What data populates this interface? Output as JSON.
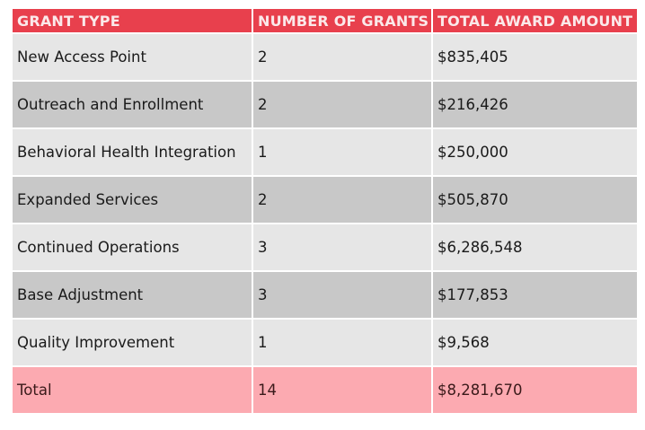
{
  "table": {
    "headers": [
      "GRANT TYPE",
      "NUMBER OF GRANTS",
      "TOTAL AWARD AMOUNT"
    ],
    "rows": [
      [
        "New Access Point",
        "2",
        "$835,405"
      ],
      [
        "Outreach and Enrollment",
        "2",
        "$216,426"
      ],
      [
        "Behavioral Health Integration",
        "1",
        "$250,000"
      ],
      [
        "Expanded Services",
        "2",
        "$505,870"
      ],
      [
        "Continued Operations",
        "3",
        "$6,286,548"
      ],
      [
        "Base Adjustment",
        "3",
        "$177,853"
      ],
      [
        "Quality Improvement",
        "1",
        "$9,568"
      ]
    ],
    "total": [
      "Total",
      "14",
      "$8,281,670"
    ]
  },
  "colors": {
    "header": "#e8404d",
    "row_light": "#e6e6e6",
    "row_dark": "#c8c8c8",
    "total": "#fcaab1"
  }
}
